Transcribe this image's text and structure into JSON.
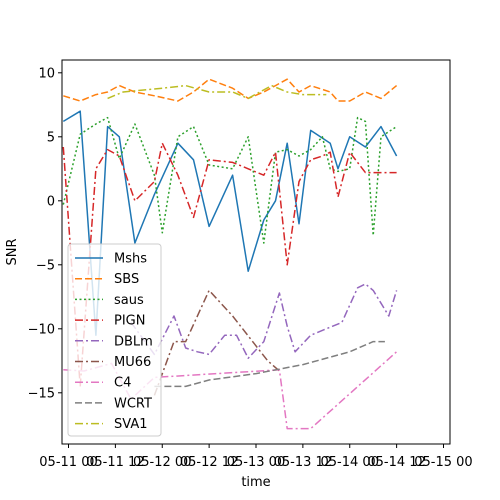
{
  "chart_data": {
    "type": "line",
    "xlabel": "time",
    "ylabel": "SNR",
    "xlim": [
      "2021-05-10 22:20",
      "2021-05-15 01:40"
    ],
    "ylim": [
      -19,
      11
    ],
    "x_ticks": [
      {
        "value": "2021-05-11 00:00",
        "label": "05-11 00"
      },
      {
        "value": "2021-05-11 12:00",
        "label": "05-11 12"
      },
      {
        "value": "2021-05-12 00:00",
        "label": "05-12 00"
      },
      {
        "value": "2021-05-12 12:00",
        "label": "05-12 12"
      },
      {
        "value": "2021-05-13 00:00",
        "label": "05-13 00"
      },
      {
        "value": "2021-05-13 12:00",
        "label": "05-13 12"
      },
      {
        "value": "2021-05-14 00:00",
        "label": "05-14 00"
      },
      {
        "value": "2021-05-14 12:00",
        "label": "05-14 12"
      },
      {
        "value": "2021-05-15 00:00",
        "label": "05-15 00"
      }
    ],
    "y_ticks": [
      {
        "value": -15,
        "label": "−15"
      },
      {
        "value": -10,
        "label": "−10"
      },
      {
        "value": -5,
        "label": "−5"
      },
      {
        "value": 0,
        "label": "0"
      },
      {
        "value": 5,
        "label": "5"
      },
      {
        "value": 10,
        "label": "10"
      }
    ],
    "grid": false,
    "legend_position": "lower-left",
    "series": [
      {
        "name": "Mshs",
        "color": "#1f77b4",
        "dash": "solid",
        "points": [
          [
            "2021-05-10 22:40",
            6.2
          ],
          [
            "2021-05-11 03:00",
            7.0
          ],
          [
            "2021-05-11 07:00",
            -10.5
          ],
          [
            "2021-05-11 10:00",
            5.8
          ],
          [
            "2021-05-11 13:00",
            5.0
          ],
          [
            "2021-05-11 17:00",
            -3.3
          ],
          [
            "2021-05-11 22:00",
            0.5
          ],
          [
            "2021-05-12 04:00",
            4.5
          ],
          [
            "2021-05-12 08:00",
            3.2
          ],
          [
            "2021-05-12 12:00",
            -2.0
          ],
          [
            "2021-05-12 18:00",
            2.0
          ],
          [
            "2021-05-12 22:00",
            -5.5
          ],
          [
            "2021-05-13 02:00",
            -1.5
          ],
          [
            "2021-05-13 05:00",
            0.0
          ],
          [
            "2021-05-13 08:00",
            4.5
          ],
          [
            "2021-05-13 11:00",
            -1.8
          ],
          [
            "2021-05-13 14:00",
            5.5
          ],
          [
            "2021-05-13 19:00",
            4.5
          ],
          [
            "2021-05-13 21:00",
            2.5
          ],
          [
            "2021-05-14 00:00",
            5.0
          ],
          [
            "2021-05-14 04:00",
            4.2
          ],
          [
            "2021-05-14 08:00",
            5.8
          ],
          [
            "2021-05-14 12:00",
            3.5
          ]
        ]
      },
      {
        "name": "SBS",
        "color": "#ff7f0e",
        "dash": "dashed",
        "points": [
          [
            "2021-05-10 22:40",
            8.2
          ],
          [
            "2021-05-11 03:00",
            7.8
          ],
          [
            "2021-05-11 07:00",
            8.3
          ],
          [
            "2021-05-11 10:00",
            8.5
          ],
          [
            "2021-05-11 13:00",
            9.0
          ],
          [
            "2021-05-11 17:00",
            8.5
          ],
          [
            "2021-05-11 22:00",
            8.2
          ],
          [
            "2021-05-12 04:00",
            7.8
          ],
          [
            "2021-05-12 08:00",
            8.5
          ],
          [
            "2021-05-12 12:00",
            9.5
          ],
          [
            "2021-05-12 18:00",
            8.8
          ],
          [
            "2021-05-12 22:00",
            8.0
          ],
          [
            "2021-05-13 02:00",
            8.5
          ],
          [
            "2021-05-13 05:00",
            9.0
          ],
          [
            "2021-05-13 08:00",
            9.5
          ],
          [
            "2021-05-13 11:00",
            8.5
          ],
          [
            "2021-05-13 14:00",
            9.0
          ],
          [
            "2021-05-13 19:00",
            8.5
          ],
          [
            "2021-05-13 21:00",
            7.8
          ],
          [
            "2021-05-14 00:00",
            7.8
          ],
          [
            "2021-05-14 04:00",
            8.5
          ],
          [
            "2021-05-14 08:00",
            8.0
          ],
          [
            "2021-05-14 12:00",
            9.0
          ]
        ]
      },
      {
        "name": "saus",
        "color": "#2ca02c",
        "dash": "dotted",
        "points": [
          [
            "2021-05-10 22:40",
            -0.3
          ],
          [
            "2021-05-11 03:00",
            5.2
          ],
          [
            "2021-05-11 07:00",
            6.0
          ],
          [
            "2021-05-11 10:00",
            6.5
          ],
          [
            "2021-05-11 13:00",
            3.3
          ],
          [
            "2021-05-11 17:00",
            6.0
          ],
          [
            "2021-05-11 22:00",
            2.0
          ],
          [
            "2021-05-12 00:00",
            -2.5
          ],
          [
            "2021-05-12 04:00",
            5.0
          ],
          [
            "2021-05-12 08:00",
            5.8
          ],
          [
            "2021-05-12 12:00",
            2.8
          ],
          [
            "2021-05-12 18:00",
            2.5
          ],
          [
            "2021-05-12 22:00",
            5.0
          ],
          [
            "2021-05-13 02:00",
            -3.3
          ],
          [
            "2021-05-13 05:00",
            3.8
          ],
          [
            "2021-05-13 08:00",
            4.0
          ],
          [
            "2021-05-13 11:00",
            3.5
          ],
          [
            "2021-05-13 14:00",
            4.0
          ],
          [
            "2021-05-13 17:00",
            5.0
          ],
          [
            "2021-05-13 19:00",
            2.5
          ],
          [
            "2021-05-13 21:00",
            2.3
          ],
          [
            "2021-05-14 00:00",
            2.5
          ],
          [
            "2021-05-14 02:00",
            6.5
          ],
          [
            "2021-05-14 04:00",
            6.2
          ],
          [
            "2021-05-14 06:00",
            -2.7
          ],
          [
            "2021-05-14 08:00",
            5.0
          ],
          [
            "2021-05-14 12:00",
            5.8
          ]
        ]
      },
      {
        "name": "PIGN",
        "color": "#d62728",
        "dash": "dashdot",
        "points": [
          [
            "2021-05-10 22:40",
            4.2
          ],
          [
            "2021-05-11 03:00",
            -14.5
          ],
          [
            "2021-05-11 07:00",
            2.5
          ],
          [
            "2021-05-11 10:00",
            4.0
          ],
          [
            "2021-05-11 13:00",
            3.5
          ],
          [
            "2021-05-11 17:00",
            0.0
          ],
          [
            "2021-05-11 22:00",
            1.5
          ],
          [
            "2021-05-12 00:00",
            4.5
          ],
          [
            "2021-05-12 04:00",
            2.0
          ],
          [
            "2021-05-12 08:00",
            -1.3
          ],
          [
            "2021-05-12 12:00",
            3.2
          ],
          [
            "2021-05-12 18:00",
            3.0
          ],
          [
            "2021-05-12 22:00",
            2.5
          ],
          [
            "2021-05-13 02:00",
            2.0
          ],
          [
            "2021-05-13 05:00",
            3.8
          ],
          [
            "2021-05-13 08:00",
            -5.0
          ],
          [
            "2021-05-13 11:00",
            1.5
          ],
          [
            "2021-05-13 14:00",
            3.2
          ],
          [
            "2021-05-13 17:00",
            3.5
          ],
          [
            "2021-05-13 19:00",
            3.8
          ],
          [
            "2021-05-13 21:00",
            0.3
          ],
          [
            "2021-05-14 00:00",
            3.8
          ],
          [
            "2021-05-14 04:00",
            2.2
          ],
          [
            "2021-05-14 08:00",
            2.2
          ],
          [
            "2021-05-14 12:00",
            2.2
          ]
        ]
      },
      {
        "name": "DBLm",
        "color": "#9467bd",
        "dash": "dashdot",
        "points": [
          [
            "2021-05-11 16:00",
            -9.5
          ],
          [
            "2021-05-11 22:00",
            -12.0
          ],
          [
            "2021-05-12 03:00",
            -9.0
          ],
          [
            "2021-05-12 06:00",
            -11.5
          ],
          [
            "2021-05-12 09:00",
            -11.8
          ],
          [
            "2021-05-12 12:00",
            -12.0
          ],
          [
            "2021-05-12 16:00",
            -10.5
          ],
          [
            "2021-05-12 19:00",
            -10.5
          ],
          [
            "2021-05-12 22:00",
            -12.3
          ],
          [
            "2021-05-13 02:00",
            -11.0
          ],
          [
            "2021-05-13 06:00",
            -7.2
          ],
          [
            "2021-05-13 08:00",
            -9.8
          ],
          [
            "2021-05-13 10:00",
            -11.8
          ],
          [
            "2021-05-13 14:00",
            -10.5
          ],
          [
            "2021-05-13 18:00",
            -10.0
          ],
          [
            "2021-05-13 22:00",
            -9.5
          ],
          [
            "2021-05-14 02:00",
            -6.8
          ],
          [
            "2021-05-14 04:00",
            -6.5
          ],
          [
            "2021-05-14 06:00",
            -7.0
          ],
          [
            "2021-05-14 08:00",
            -8.0
          ],
          [
            "2021-05-14 10:00",
            -9.0
          ],
          [
            "2021-05-14 12:00",
            -7.0
          ]
        ]
      },
      {
        "name": "MU66",
        "color": "#8c564b",
        "dash": "dashdot",
        "points": [
          [
            "2021-05-11 22:00",
            -15.2
          ],
          [
            "2021-05-12 03:00",
            -11.0
          ],
          [
            "2021-05-12 06:00",
            -11.0
          ],
          [
            "2021-05-12 12:00",
            -7.0
          ],
          [
            "2021-05-12 18:00",
            -9.0
          ],
          [
            "2021-05-13 03:00",
            -12.5
          ],
          [
            "2021-05-13 06:00",
            -13.3
          ]
        ]
      },
      {
        "name": "C4",
        "color": "#e377c2",
        "dash": "dashdot",
        "points": [
          [
            "2021-05-10 22:40",
            -13.2
          ],
          [
            "2021-05-11 04:00",
            -13.3
          ],
          [
            "2021-05-11 11:00",
            -12.7
          ],
          [
            "2021-05-11 16:00",
            -15.5
          ],
          [
            "2021-05-11 22:00",
            -13.8
          ],
          [
            "2021-05-13 06:00",
            -13.2
          ],
          [
            "2021-05-13 08:00",
            -17.8
          ],
          [
            "2021-05-13 14:00",
            -17.8
          ],
          [
            "2021-05-14 12:00",
            -11.8
          ]
        ]
      },
      {
        "name": "WCRT",
        "color": "#7f7f7f",
        "dash": "dashed",
        "points": [
          [
            "2021-05-11 22:00",
            -14.5
          ],
          [
            "2021-05-12 06:00",
            -14.5
          ],
          [
            "2021-05-12 12:00",
            -14.0
          ],
          [
            "2021-05-13 00:00",
            -13.5
          ],
          [
            "2021-05-13 12:00",
            -12.8
          ],
          [
            "2021-05-14 00:00",
            -11.8
          ],
          [
            "2021-05-14 06:00",
            -11.0
          ],
          [
            "2021-05-14 09:00",
            -11.0
          ]
        ]
      },
      {
        "name": "SVA1",
        "color": "#bcbd22",
        "dash": "dashdot",
        "points": [
          [
            "2021-05-11 10:00",
            8.0
          ],
          [
            "2021-05-11 14:00",
            8.5
          ],
          [
            "2021-05-12 00:00",
            8.8
          ],
          [
            "2021-05-12 06:00",
            9.0
          ],
          [
            "2021-05-12 12:00",
            8.5
          ],
          [
            "2021-05-12 18:00",
            8.5
          ],
          [
            "2021-05-12 22:00",
            8.0
          ],
          [
            "2021-05-13 04:00",
            9.0
          ],
          [
            "2021-05-13 08:00",
            8.5
          ],
          [
            "2021-05-13 12:00",
            8.3
          ],
          [
            "2021-05-13 18:00",
            8.3
          ]
        ]
      }
    ]
  }
}
